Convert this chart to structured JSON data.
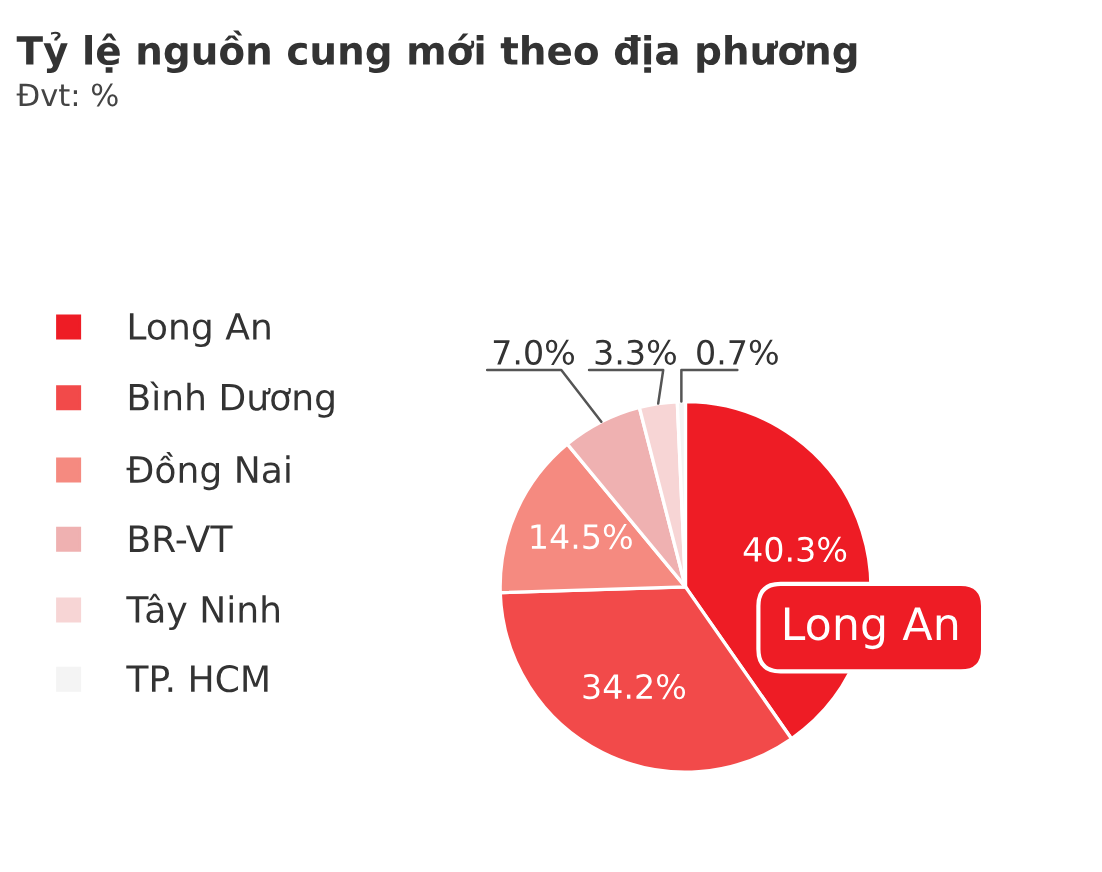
{
  "chart_data": {
    "type": "pie",
    "title": "Tỷ lệ nguồn cung mới theo địa phương",
    "subtitle": "Đvt: %",
    "categories": [
      "Long An",
      "Bình Dương",
      "Đồng Nai",
      "BR-VT",
      "Tây Ninh",
      "TP. HCM"
    ],
    "values": [
      40.3,
      34.2,
      14.5,
      7.0,
      3.3,
      0.7
    ],
    "value_labels": [
      "40.3%",
      "34.2%",
      "14.5%",
      "7.0%",
      "3.3%",
      "0.7%"
    ],
    "colors": [
      "#ee1c25",
      "#f24a4a",
      "#f58a80",
      "#efb1b1",
      "#f7d5d5",
      "#f4f4f4"
    ],
    "annotations": [
      "Long An"
    ],
    "legend": "left"
  }
}
